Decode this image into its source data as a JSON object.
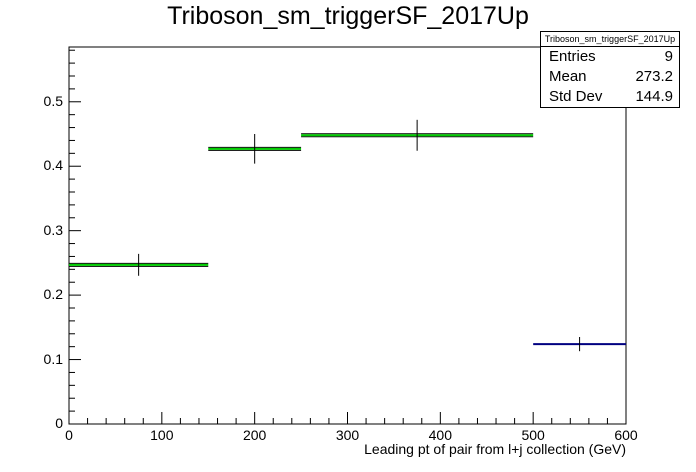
{
  "chart_data": {
    "type": "histogram",
    "title": "Triboson_sm_triggerSF_2017Up",
    "xlabel": "Leading pt of pair from l+j collection (GeV)",
    "ylabel": "",
    "xlim": [
      0,
      600
    ],
    "ylim": [
      0,
      0.585
    ],
    "xticks": [
      0,
      100,
      200,
      300,
      400,
      500,
      600
    ],
    "yticks": [
      0,
      0.1,
      0.2,
      0.3,
      0.4,
      0.5
    ],
    "bins": [
      {
        "xlow": 0,
        "xhigh": 150,
        "y": 0.247,
        "err": 0.017,
        "x": 75
      },
      {
        "xlow": 150,
        "xhigh": 250,
        "y": 0.427,
        "err": 0.023,
        "x": 200
      },
      {
        "xlow": 250,
        "xhigh": 500,
        "y": 0.448,
        "err": 0.024,
        "x": 375
      },
      {
        "xlow": 500,
        "xhigh": 600,
        "y": 0.124,
        "err": 0.011,
        "x": 550
      }
    ],
    "colors": {
      "green": "#00cc00",
      "navy": "#000080",
      "black": "#000000"
    },
    "grid": false
  },
  "stats": {
    "title": "Triboson_sm_triggerSF_2017Up",
    "rows": [
      {
        "label": "Entries",
        "value": "9"
      },
      {
        "label": "Mean",
        "value": "273.2"
      },
      {
        "label": "Std Dev",
        "value": "144.9"
      }
    ]
  }
}
